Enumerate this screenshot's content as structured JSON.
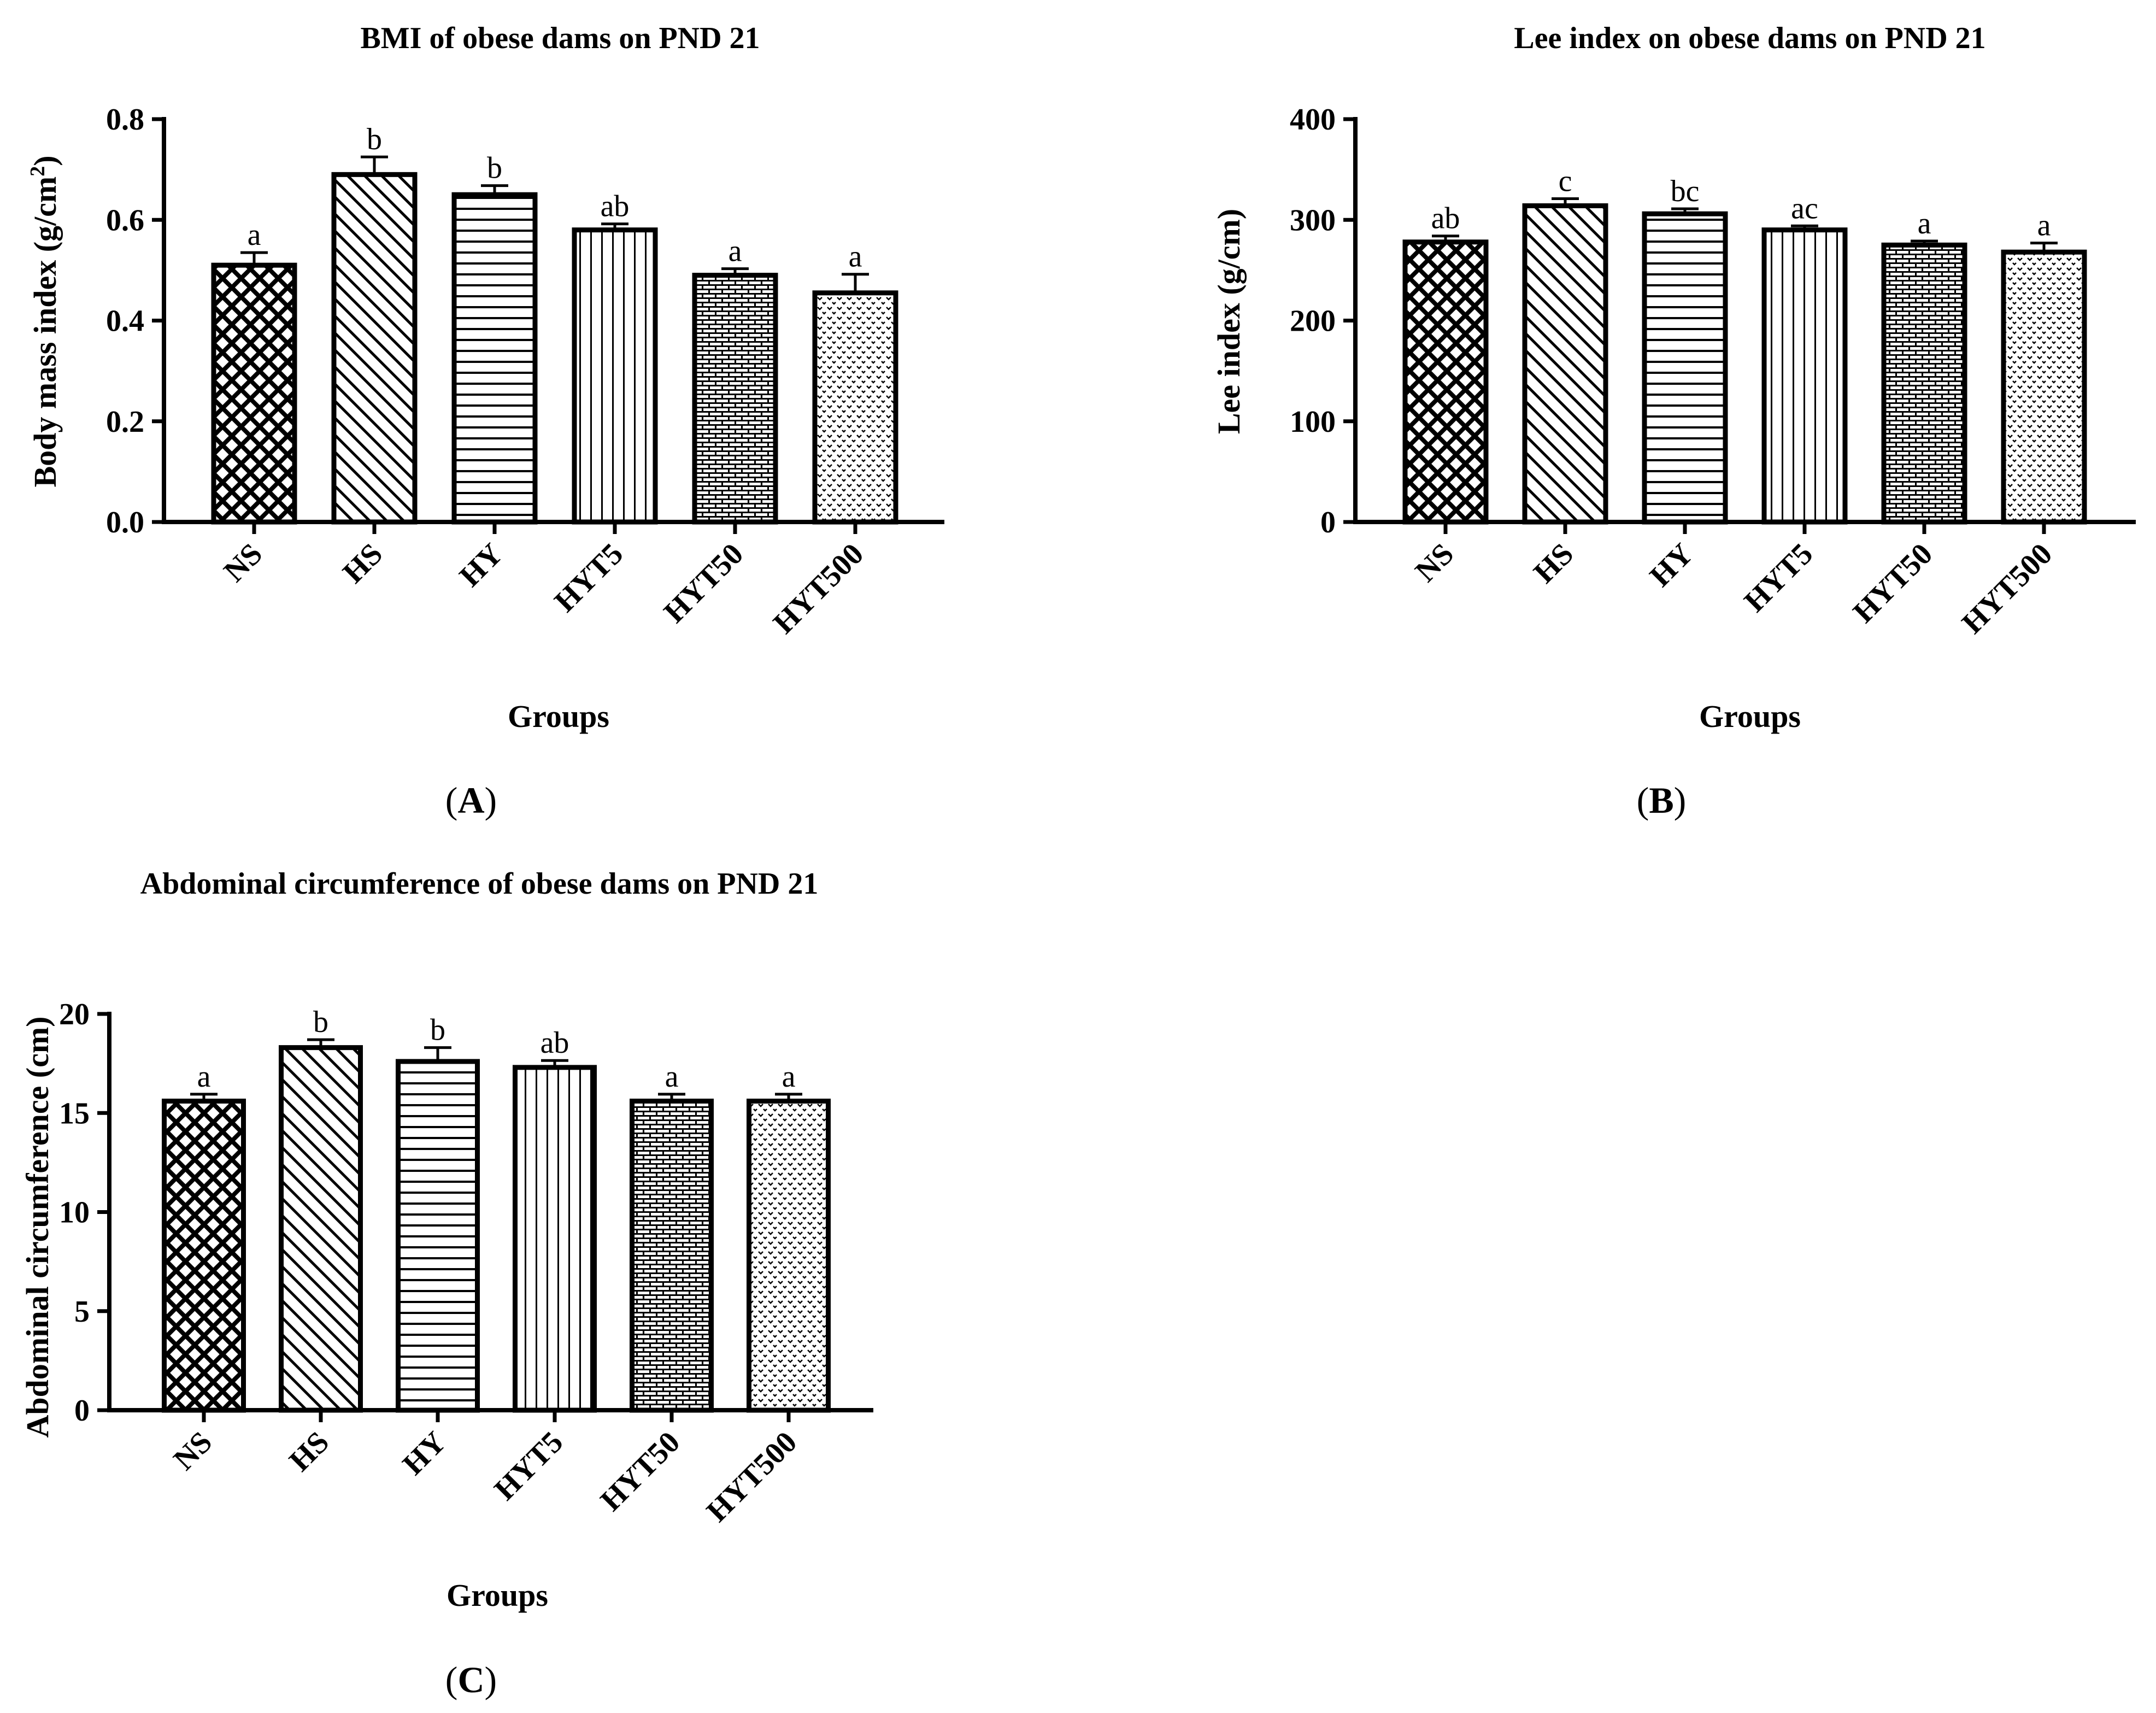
{
  "figure": {
    "panels": [
      {
        "id": "A",
        "label_open": "(",
        "label_letter": "A",
        "label_close": ")"
      },
      {
        "id": "B",
        "label_open": "(",
        "label_letter": "B",
        "label_close": ")"
      },
      {
        "id": "C",
        "label_open": "(",
        "label_letter": "C",
        "label_close": ")"
      }
    ]
  },
  "chart_data": [
    {
      "type": "bar",
      "title": "BMI of obese dams on PND 21",
      "xlabel": "Groups",
      "ylabel_main": "Body mass index (g/cm",
      "ylabel_sup": "2",
      "ylabel_end": ")",
      "ylim": [
        0,
        0.8
      ],
      "yticks": [
        "0.0",
        "0.2",
        "0.4",
        "0.6",
        "0.8"
      ],
      "ytick_values": [
        0,
        0.2,
        0.4,
        0.6,
        0.8
      ],
      "categories": [
        "NS",
        "HS",
        "HY",
        "HYT5",
        "HYT50",
        "HYT500"
      ],
      "values": [
        0.51,
        0.69,
        0.65,
        0.58,
        0.49,
        0.455
      ],
      "errors": [
        0.025,
        0.035,
        0.018,
        0.012,
        0.013,
        0.037
      ],
      "significance": [
        "a",
        "b",
        "b",
        "ab",
        "a",
        "a"
      ],
      "patterns": [
        "crosshatch",
        "diagonal",
        "horizontal",
        "vertical",
        "brick",
        "dots"
      ]
    },
    {
      "type": "bar",
      "title": "Lee index on obese dams on PND 21",
      "xlabel": "Groups",
      "ylabel_main": "Lee index (g/cm)",
      "ylabel_sup": "",
      "ylabel_end": "",
      "ylim": [
        0,
        400
      ],
      "yticks": [
        "0",
        "100",
        "200",
        "300",
        "400"
      ],
      "ytick_values": [
        0,
        100,
        200,
        300,
        400
      ],
      "categories": [
        "NS",
        "HS",
        "HY",
        "HYT5",
        "HYT50",
        "HYT500"
      ],
      "values": [
        278,
        314,
        306,
        290,
        275,
        268
      ],
      "errors": [
        6,
        7,
        5,
        4,
        4,
        9
      ],
      "significance": [
        "ab",
        "c",
        "bc",
        "ac",
        "a",
        "a"
      ],
      "patterns": [
        "crosshatch",
        "diagonal",
        "horizontal",
        "vertical",
        "brick",
        "dots"
      ]
    },
    {
      "type": "bar",
      "title": "Abdominal circumference of obese dams on PND 21",
      "xlabel": "Groups",
      "ylabel_main": "Abdominal circumference (cm)",
      "ylabel_sup": "",
      "ylabel_end": "",
      "ylim": [
        0,
        20
      ],
      "yticks": [
        "0",
        "5",
        "10",
        "15",
        "20"
      ],
      "ytick_values": [
        0,
        5,
        10,
        15,
        20
      ],
      "categories": [
        "NS",
        "HS",
        "HY",
        "HYT5",
        "HYT50",
        "HYT500"
      ],
      "values": [
        15.6,
        18.3,
        17.6,
        17.3,
        15.6,
        15.6
      ],
      "errors": [
        0.35,
        0.4,
        0.7,
        0.35,
        0.35,
        0.35
      ],
      "significance": [
        "a",
        "b",
        "b",
        "ab",
        "a",
        "a"
      ],
      "patterns": [
        "crosshatch",
        "diagonal",
        "horizontal",
        "vertical",
        "brick",
        "dots"
      ]
    }
  ]
}
